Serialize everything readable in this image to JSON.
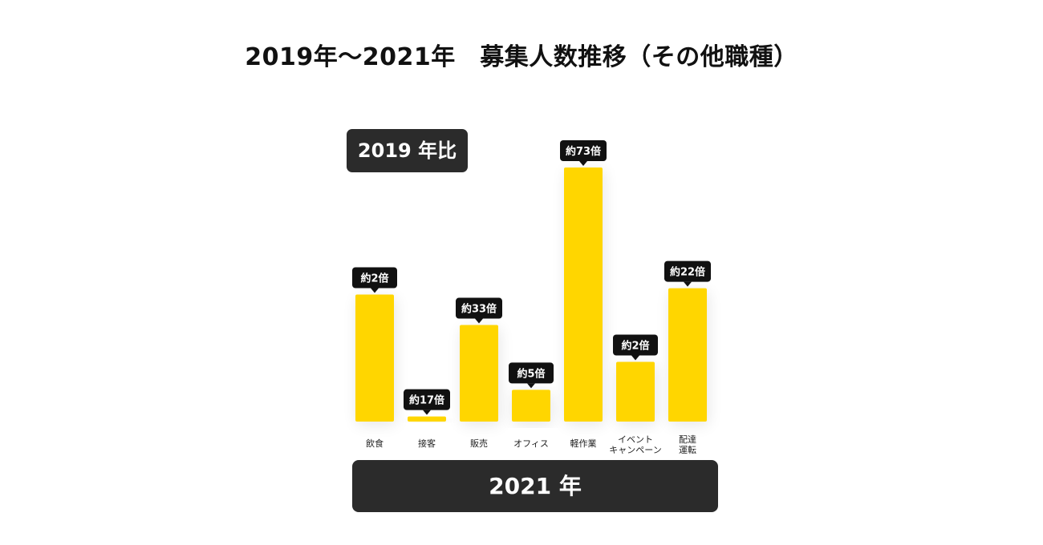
{
  "title": "2019年〜2021年　募集人数推移（その他職種）",
  "badge": "2019 年比",
  "banner": "2021 年",
  "colors": {
    "bar": "#ffd600",
    "dark": "#2b2b2b"
  },
  "chart_data": {
    "type": "bar",
    "title": "2019年〜2021年　募集人数推移（その他職種）",
    "categories": [
      [
        "飲食"
      ],
      [
        "接客"
      ],
      [
        "販売"
      ],
      [
        "オフィス"
      ],
      [
        "軽作業"
      ],
      [
        "イベント",
        "キャンペーン"
      ],
      [
        "配達",
        "運転"
      ]
    ],
    "data_labels": [
      "約2倍",
      "約17倍",
      "約33倍",
      "約5倍",
      "約73倍",
      "約2倍",
      "約22倍"
    ],
    "values": [
      50,
      2,
      38,
      12.5,
      100,
      23.5,
      52.5
    ],
    "ylim": [
      0,
      100
    ],
    "grid": false
  }
}
